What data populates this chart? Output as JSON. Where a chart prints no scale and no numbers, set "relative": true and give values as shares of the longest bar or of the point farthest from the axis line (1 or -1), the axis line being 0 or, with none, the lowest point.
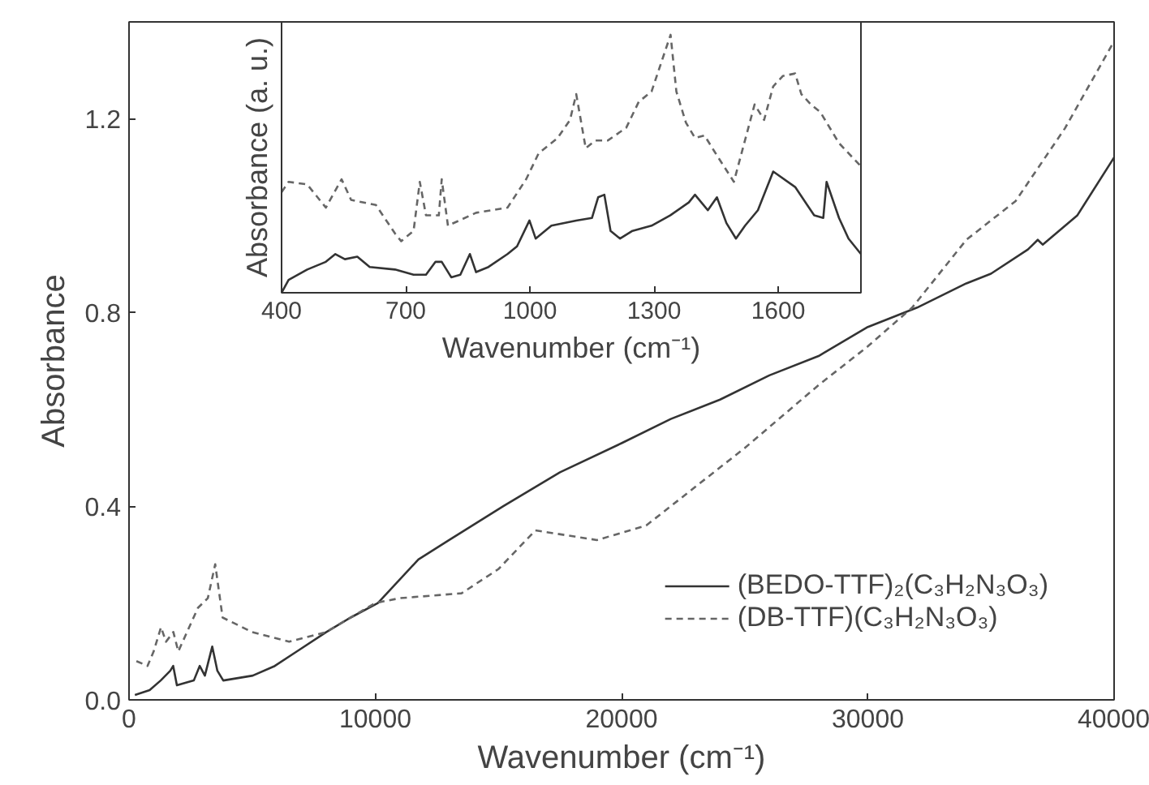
{
  "chart_data": [
    {
      "type": "line",
      "xlabel": "Wavenumber (cm⁻¹)",
      "ylabel": "Absorbance",
      "xlim": [
        0,
        40000
      ],
      "ylim": [
        0,
        1.4
      ],
      "xticks": [
        0,
        10000,
        20000,
        30000,
        40000
      ],
      "yticks": [
        {
          "value": 0,
          "label": "0.0"
        },
        0.4,
        0.8,
        1.2
      ],
      "legend": "bottom right",
      "grid": false,
      "series": [
        {
          "name": "(BEDO-TTF)₂(C₃H₂N₃O₃)",
          "color": "#333333",
          "line_style": "solid",
          "x": [
            239,
            837,
            1286,
            1675,
            1794,
            1944,
            2631,
            2870,
            3080,
            3379,
            3588,
            3827,
            5023,
            5920,
            6817,
            8013,
            9000,
            10106,
            11751,
            13000,
            15200,
            17500,
            20000,
            22000,
            24000,
            26000,
            28000,
            30000,
            32000,
            34000,
            35000,
            36500,
            36900,
            37100,
            38500,
            40000
          ],
          "values": [
            0.01,
            0.02,
            0.04,
            0.06,
            0.07,
            0.03,
            0.04,
            0.07,
            0.05,
            0.11,
            0.06,
            0.04,
            0.05,
            0.07,
            0.1,
            0.14,
            0.17,
            0.2,
            0.29,
            0.33,
            0.4,
            0.47,
            0.53,
            0.58,
            0.62,
            0.67,
            0.71,
            0.77,
            0.81,
            0.86,
            0.88,
            0.93,
            0.95,
            0.94,
            1.0,
            1.12
          ]
        },
        {
          "name": "(DB-TTF)(C₃H₂N₃O₃)",
          "color": "#666666",
          "line_style": "dashed",
          "x": [
            300,
            750,
            1000,
            1300,
            1500,
            1800,
            2000,
            2800,
            3200,
            3500,
            3800,
            5000,
            6500,
            8000,
            10000,
            11000,
            13500,
            15000,
            16500,
            19000,
            21000,
            22000,
            25000,
            28000,
            30000,
            31800,
            34000,
            36000,
            38000,
            40000
          ],
          "values": [
            0.08,
            0.07,
            0.1,
            0.15,
            0.12,
            0.14,
            0.1,
            0.19,
            0.21,
            0.28,
            0.17,
            0.14,
            0.12,
            0.14,
            0.2,
            0.21,
            0.22,
            0.27,
            0.35,
            0.33,
            0.36,
            0.4,
            0.52,
            0.65,
            0.73,
            0.81,
            0.95,
            1.03,
            1.18,
            1.36
          ]
        }
      ]
    },
    {
      "type": "line",
      "xlabel": "Wavenumber (cm⁻¹)",
      "ylabel": "Absorbance (a. u.)",
      "relative": true,
      "xlim": [
        400,
        1800
      ],
      "xticks": [
        400,
        700,
        1000,
        1300,
        1600
      ],
      "grid": false,
      "series": [
        {
          "color": "#333333",
          "line_style": "solid",
          "x": [
            400,
            417,
            462,
            507,
            530,
            553,
            583,
            613,
            674,
            719,
            749,
            772,
            787,
            810,
            832,
            855,
            870,
            900,
            946,
            969,
            999,
            1014,
            1052,
            1112,
            1150,
            1165,
            1180,
            1195,
            1218,
            1248,
            1294,
            1339,
            1384,
            1399,
            1430,
            1452,
            1475,
            1498,
            1520,
            1551,
            1588,
            1641,
            1687,
            1709,
            1717,
            1747,
            1770,
            1800
          ],
          "values": [
            0.0,
            0.05,
            0.09,
            0.12,
            0.15,
            0.13,
            0.14,
            0.1,
            0.09,
            0.07,
            0.07,
            0.12,
            0.12,
            0.06,
            0.07,
            0.15,
            0.08,
            0.1,
            0.15,
            0.18,
            0.28,
            0.21,
            0.26,
            0.28,
            0.29,
            0.37,
            0.38,
            0.24,
            0.21,
            0.24,
            0.26,
            0.3,
            0.35,
            0.38,
            0.32,
            0.37,
            0.27,
            0.21,
            0.26,
            0.32,
            0.47,
            0.41,
            0.3,
            0.29,
            0.43,
            0.29,
            0.21,
            0.15
          ]
        },
        {
          "color": "#666666",
          "line_style": "dashed",
          "x": [
            400,
            417,
            462,
            507,
            545,
            568,
            628,
            674,
            689,
            719,
            734,
            749,
            780,
            787,
            802,
            870,
            946,
            991,
            1021,
            1067,
            1097,
            1112,
            1135,
            1158,
            1188,
            1233,
            1263,
            1294,
            1340,
            1354,
            1377,
            1399,
            1422,
            1445,
            1493,
            1543,
            1566,
            1588,
            1611,
            1641,
            1656,
            1679,
            1702,
            1747,
            1800
          ],
          "values": [
            0.39,
            0.43,
            0.42,
            0.33,
            0.44,
            0.36,
            0.34,
            0.23,
            0.2,
            0.24,
            0.43,
            0.3,
            0.3,
            0.44,
            0.26,
            0.31,
            0.33,
            0.44,
            0.54,
            0.6,
            0.67,
            0.77,
            0.56,
            0.59,
            0.59,
            0.64,
            0.74,
            0.78,
            1.0,
            0.78,
            0.66,
            0.6,
            0.61,
            0.55,
            0.43,
            0.73,
            0.67,
            0.8,
            0.84,
            0.85,
            0.77,
            0.73,
            0.7,
            0.58,
            0.49
          ]
        }
      ]
    }
  ]
}
